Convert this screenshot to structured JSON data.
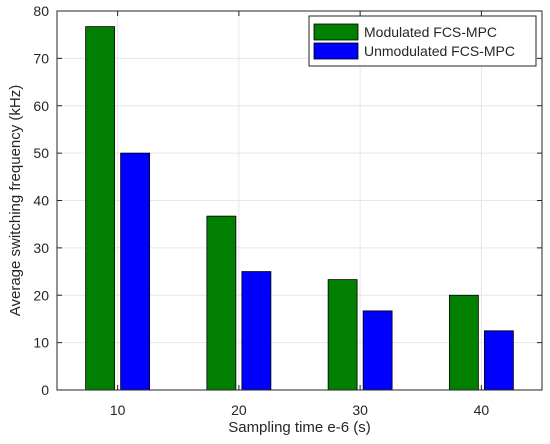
{
  "chart_data": {
    "type": "bar",
    "title": "",
    "xlabel": "Sampling time e-6 (s)",
    "ylabel": "Average switching frequency (kHz)",
    "categories": [
      "10",
      "20",
      "30",
      "40"
    ],
    "ylim": [
      0,
      80
    ],
    "yticks": [
      "0",
      "10",
      "20",
      "30",
      "40",
      "50",
      "60",
      "70",
      "80"
    ],
    "grid": true,
    "legend_position": "top-right",
    "series": [
      {
        "name": "Modulated FCS-MPC",
        "color": "#007f00",
        "values": [
          76.7,
          36.7,
          23.3,
          20.0
        ]
      },
      {
        "name": "Unmodulated FCS-MPC",
        "color": "#0000ff",
        "values": [
          50.0,
          25.0,
          16.7,
          12.5
        ]
      }
    ]
  }
}
